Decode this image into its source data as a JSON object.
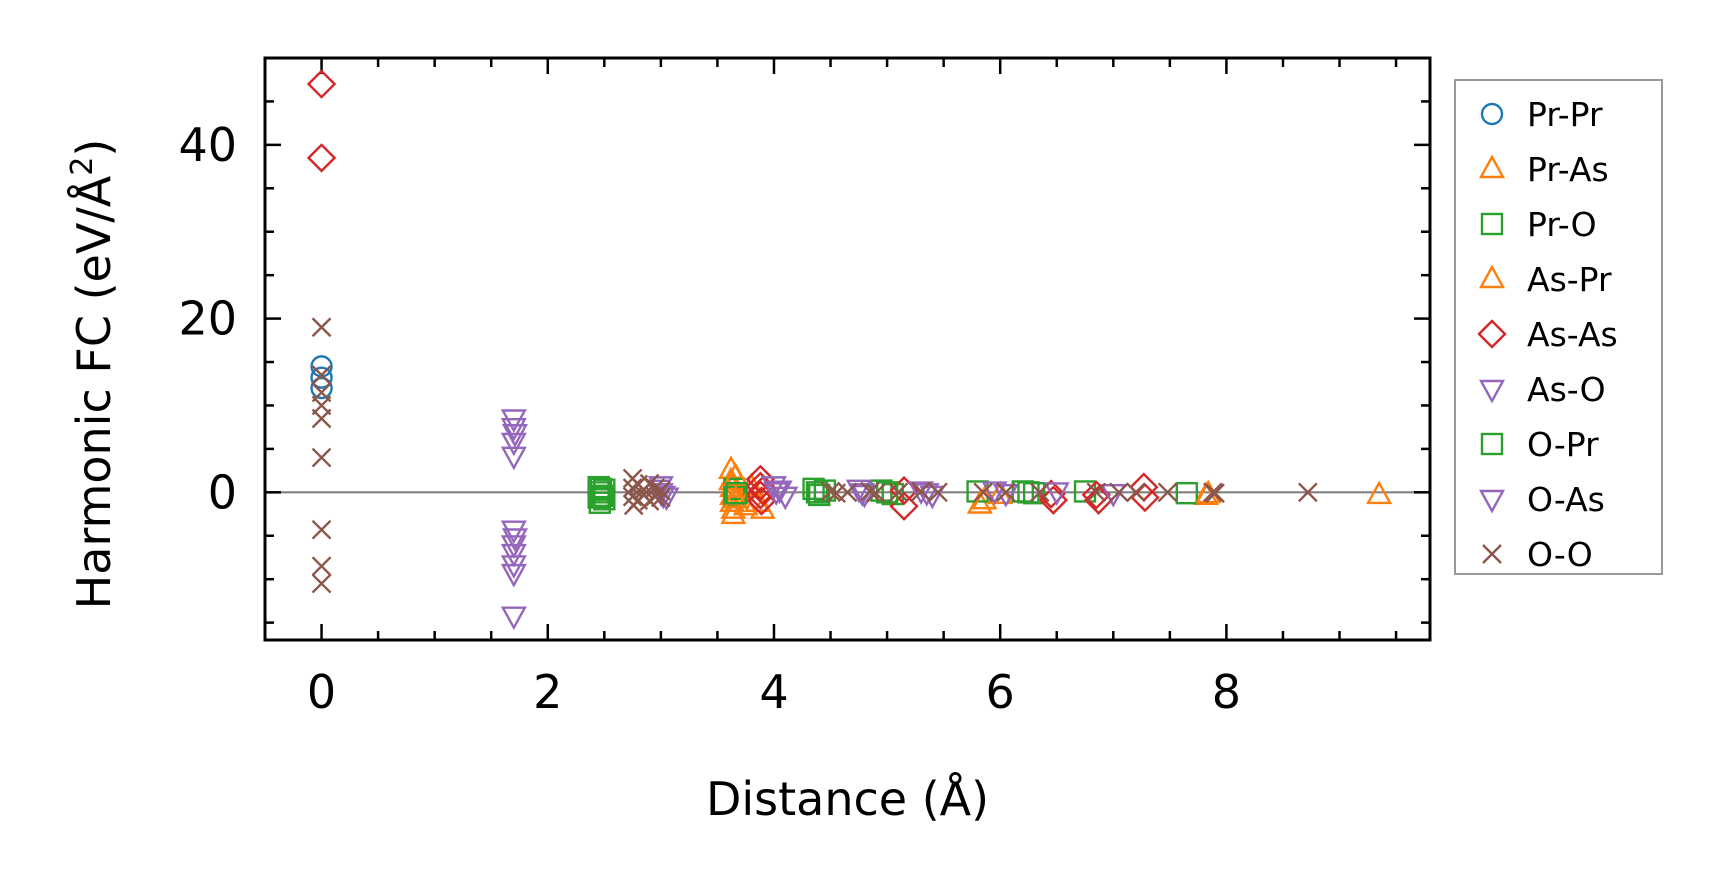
{
  "chart_data": {
    "type": "scatter",
    "xlabel": "Distance (Å)",
    "ylabel": "Harmonic FC (eV/Å",
    "ylabel_sup": "2",
    "ylabel_close": ")",
    "xlim": [
      -0.5,
      9.8
    ],
    "ylim": [
      -17,
      50
    ],
    "xticks": [
      0,
      2,
      4,
      6,
      8
    ],
    "yticks": [
      0,
      20,
      40
    ],
    "x_minor_step": 0.5,
    "y_minor_step": 5,
    "zero_line": true,
    "grid": false,
    "legend_position": "outside-right",
    "series": [
      {
        "name": "Pr-Pr",
        "marker": "circle",
        "color": "#1f77b4",
        "points": [
          [
            0,
            14.5
          ],
          [
            0,
            13.2
          ],
          [
            0,
            12.0
          ]
        ]
      },
      {
        "name": "Pr-As",
        "marker": "triangle-up",
        "color": "#ff7f0e",
        "points": [
          [
            3.62,
            2.6
          ],
          [
            3.62,
            1.3
          ],
          [
            3.63,
            0.5
          ],
          [
            3.63,
            -0.4
          ],
          [
            3.63,
            -1.2
          ],
          [
            3.64,
            -2.0
          ],
          [
            3.64,
            -2.6
          ],
          [
            3.8,
            0.6
          ],
          [
            3.85,
            -1.2
          ],
          [
            3.9,
            -2.0
          ],
          [
            5.82,
            -1.4
          ],
          [
            6.0,
            -0.3
          ],
          [
            7.82,
            -0.4
          ],
          [
            9.35,
            -0.3
          ]
        ]
      },
      {
        "name": "Pr-O",
        "marker": "square",
        "color": "#2ca02c",
        "points": [
          [
            2.45,
            0.6
          ],
          [
            2.45,
            0.0
          ],
          [
            2.45,
            -0.6
          ],
          [
            2.46,
            -1.2
          ],
          [
            2.5,
            0.3
          ],
          [
            2.5,
            -0.8
          ],
          [
            3.65,
            0.4
          ],
          [
            3.65,
            -0.5
          ],
          [
            4.35,
            0.4
          ],
          [
            4.4,
            -0.3
          ],
          [
            4.45,
            0.2
          ],
          [
            4.95,
            0.2
          ],
          [
            5.05,
            -0.2
          ],
          [
            5.8,
            0.1
          ],
          [
            6.2,
            0.1
          ],
          [
            6.3,
            -0.1
          ],
          [
            6.75,
            0.1
          ],
          [
            7.65,
            -0.1
          ]
        ]
      },
      {
        "name": "As-Pr",
        "marker": "triangle-up",
        "color": "#ff7f0e",
        "points": [
          [
            3.66,
            1.8
          ],
          [
            3.66,
            -0.8
          ],
          [
            3.75,
            -1.6
          ],
          [
            5.86,
            -0.9
          ],
          [
            7.84,
            -0.2
          ]
        ]
      },
      {
        "name": "As-As",
        "marker": "diamond",
        "color": "#d62728",
        "points": [
          [
            0,
            47
          ],
          [
            0,
            38.5
          ],
          [
            3.88,
            1.5
          ],
          [
            3.88,
            0.7
          ],
          [
            3.88,
            -0.3
          ],
          [
            3.89,
            -1.0
          ],
          [
            3.9,
            0.2
          ],
          [
            5.15,
            0.2
          ],
          [
            5.15,
            -1.6
          ],
          [
            6.45,
            -0.2
          ],
          [
            6.47,
            -0.9
          ],
          [
            6.85,
            -0.3
          ],
          [
            6.87,
            -0.9
          ],
          [
            7.27,
            0.6
          ],
          [
            7.28,
            -0.6
          ]
        ]
      },
      {
        "name": "As-O",
        "marker": "triangle-down",
        "color": "#9467bd",
        "points": [
          [
            1.7,
            8.5
          ],
          [
            1.7,
            7.5
          ],
          [
            1.7,
            5.8
          ],
          [
            1.7,
            4.2
          ],
          [
            1.7,
            -4.3
          ],
          [
            1.7,
            -6.0
          ],
          [
            1.7,
            -7.0
          ],
          [
            1.7,
            -8.3
          ],
          [
            1.7,
            -9.3
          ],
          [
            1.7,
            -14.2
          ],
          [
            3.0,
            0.8
          ],
          [
            3.0,
            0.0
          ],
          [
            3.05,
            -0.5
          ],
          [
            4.0,
            0.8
          ],
          [
            4.05,
            0.3
          ],
          [
            4.1,
            -0.4
          ],
          [
            4.75,
            0.4
          ],
          [
            4.8,
            -0.2
          ],
          [
            5.3,
            0.2
          ],
          [
            5.4,
            -0.3
          ],
          [
            5.95,
            0.2
          ],
          [
            6.05,
            -0.1
          ],
          [
            6.5,
            0.1
          ],
          [
            7.0,
            -0.1
          ]
        ]
      },
      {
        "name": "O-Pr",
        "marker": "square",
        "color": "#2ca02c",
        "points": [
          [
            2.47,
            0.4
          ],
          [
            2.48,
            -0.4
          ],
          [
            3.67,
            -0.1
          ],
          [
            4.38,
            0.0
          ],
          [
            5.0,
            0.0
          ],
          [
            6.25,
            0.0
          ]
        ]
      },
      {
        "name": "O-As",
        "marker": "triangle-down",
        "color": "#9467bd",
        "points": [
          [
            1.71,
            6.8
          ],
          [
            1.71,
            -5.2
          ],
          [
            2.98,
            0.4
          ],
          [
            3.02,
            -0.3
          ],
          [
            4.02,
            0.1
          ],
          [
            4.78,
            0.0
          ],
          [
            5.35,
            0.0
          ]
        ]
      },
      {
        "name": "O-O",
        "marker": "x",
        "color": "#8c564b",
        "points": [
          [
            0,
            19
          ],
          [
            0,
            13.5
          ],
          [
            0,
            11.5
          ],
          [
            0,
            10.0
          ],
          [
            0,
            8.5
          ],
          [
            0,
            4.0
          ],
          [
            0,
            -4.3
          ],
          [
            0,
            -8.5
          ],
          [
            0,
            -10.5
          ],
          [
            2.75,
            1.6
          ],
          [
            2.75,
            0.5
          ],
          [
            2.75,
            -0.5
          ],
          [
            2.76,
            -1.5
          ],
          [
            2.8,
            0.9
          ],
          [
            2.8,
            -0.9
          ],
          [
            2.85,
            0.3
          ],
          [
            2.85,
            -0.3
          ],
          [
            2.9,
            1.0
          ],
          [
            2.9,
            -1.0
          ],
          [
            2.95,
            0.5
          ],
          [
            2.95,
            -0.5
          ],
          [
            3.0,
            0.2
          ],
          [
            3.0,
            -0.6
          ],
          [
            4.5,
            0.1
          ],
          [
            4.55,
            -0.1
          ],
          [
            4.65,
            0.0
          ],
          [
            4.85,
            0.1
          ],
          [
            4.9,
            -0.1
          ],
          [
            5.1,
            0.0
          ],
          [
            5.3,
            0.1
          ],
          [
            5.45,
            0.0
          ],
          [
            5.85,
            0.0
          ],
          [
            6.05,
            0.0
          ],
          [
            6.35,
            0.0
          ],
          [
            6.85,
            0.0
          ],
          [
            7.05,
            0.0
          ],
          [
            7.2,
            0.0
          ],
          [
            7.48,
            0.0
          ],
          [
            7.88,
            0.0
          ],
          [
            7.9,
            -0.1
          ],
          [
            8.72,
            0.0
          ]
        ]
      }
    ]
  },
  "colors": {
    "axis": "#000000",
    "zero_line": "#808080",
    "legend_border": "#999999"
  }
}
